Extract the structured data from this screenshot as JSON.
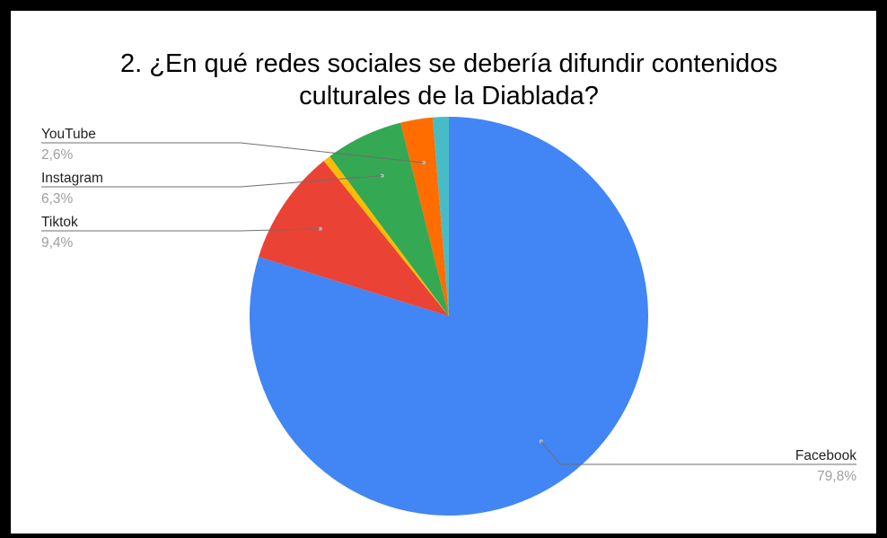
{
  "chart_data": {
    "type": "pie",
    "title_lines": [
      "2. ¿En qué redes sociales se debería difundir contenidos",
      "culturales de la Diablada?"
    ],
    "slices": [
      {
        "label": "Facebook",
        "value": 79.8,
        "value_label": "79,8%",
        "color": "#4285F4"
      },
      {
        "label": "Tiktok",
        "value": 9.4,
        "value_label": "9,4%",
        "color": "#EA4335"
      },
      {
        "label": "",
        "value": 0.6,
        "value_label": "",
        "color": "#FBBC04"
      },
      {
        "label": "Instagram",
        "value": 6.3,
        "value_label": "6,3%",
        "color": "#34A853"
      },
      {
        "label": "YouTube",
        "value": 2.6,
        "value_label": "2,6%",
        "color": "#FF6D01"
      },
      {
        "label": "",
        "value": 1.3,
        "value_label": "",
        "color": "#46BDC6"
      }
    ],
    "start_angle_deg": 0,
    "direction": "clockwise",
    "legend": "none",
    "labels": "outside-with-leader-lines"
  }
}
